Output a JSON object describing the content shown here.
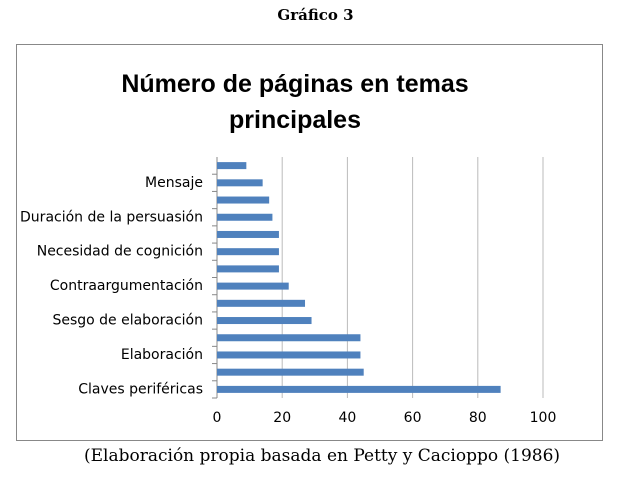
{
  "header": {
    "title": "Gráfico 3"
  },
  "chart_data": {
    "type": "bar",
    "orientation": "horizontal",
    "title": "Número de páginas en temas principales",
    "categories": [
      "Claves periféricas",
      null,
      "Elaboración",
      null,
      "Sesgo de elaboración",
      null,
      "Contraargumentación",
      null,
      "Necesidad de cognición",
      null,
      "Duración de la persuasión",
      null,
      "Mensaje",
      null
    ],
    "values": [
      87,
      45,
      44,
      44,
      29,
      27,
      22,
      19,
      19,
      19,
      17,
      16,
      14,
      9
    ],
    "color": "#4f81bd",
    "xlim": [
      0,
      100
    ],
    "xticks": [
      0,
      20,
      40,
      60,
      80,
      100
    ],
    "grid": true
  },
  "caption": "(Elaboración propia basada en Petty y Cacioppo (1986)"
}
